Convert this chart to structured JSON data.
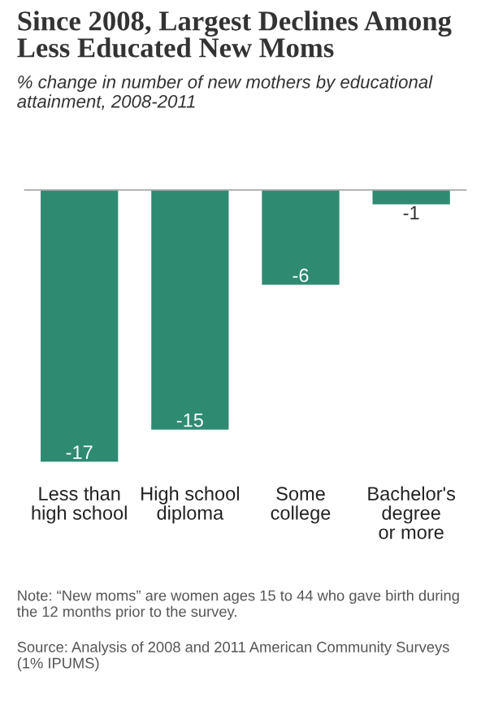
{
  "chart_data": {
    "type": "bar",
    "title": "Since 2008, Largest Declines Among Less Educated New Moms",
    "subtitle": "% change in number of new mothers by educational attainment, 2008-2011",
    "categories": [
      "Less than\nhigh school",
      "High school\ndiploma",
      "Some\ncollege",
      "Bachelor's\ndegree\nor more"
    ],
    "values": [
      -17,
      -15,
      -6,
      -1
    ],
    "color": "#2f8a72",
    "data_labels": true,
    "tick_labels": "x",
    "grid": false,
    "legend": false,
    "annotations": [
      "Note: “New moms” are women ages 15 to 44 who gave birth during the 12 months prior to the survey.",
      "Source: Analysis of 2008 and 2011 American Community Surveys (1% IPUMS)"
    ]
  }
}
